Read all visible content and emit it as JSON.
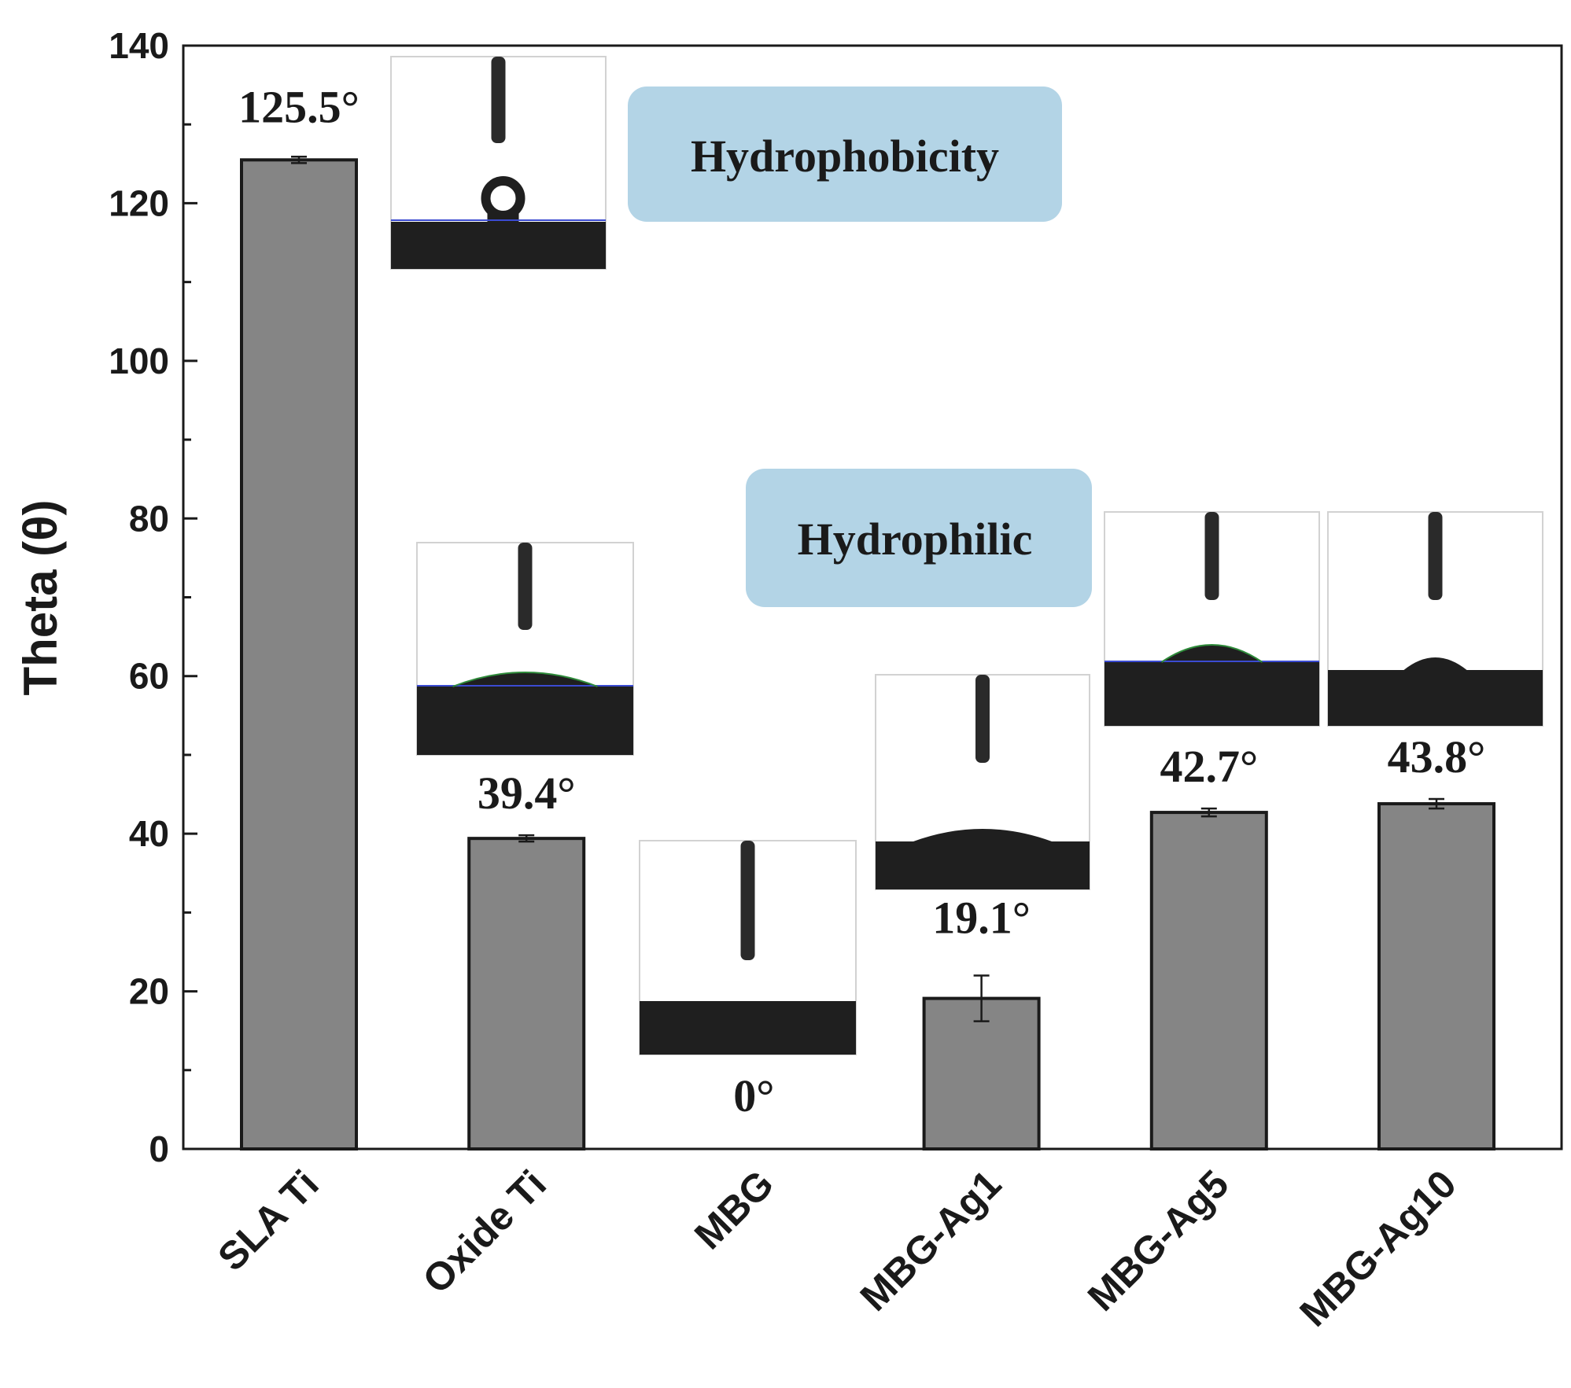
{
  "chart_data": {
    "type": "bar",
    "title": "",
    "xlabel": "",
    "ylabel": "Theta (θ)",
    "ylim": [
      0,
      140
    ],
    "yticks": [
      0,
      20,
      40,
      60,
      80,
      100,
      120,
      140
    ],
    "categories": [
      "SLA Ti",
      "Oxide Ti",
      "MBG",
      "MBG-Ag1",
      "MBG-Ag5",
      "MBG-Ag10"
    ],
    "values": [
      125.5,
      39.4,
      0,
      19.1,
      42.7,
      43.8
    ],
    "errors": [
      0.4,
      0.4,
      0,
      2.9,
      0.5,
      0.6
    ],
    "value_labels": [
      "125.5°",
      "39.4°",
      "0°",
      "19.1°",
      "42.7°",
      "43.8°"
    ],
    "bar_color": "#858585",
    "annotations": [
      {
        "text": "Hydrophobicity",
        "color": "#b3d4e6"
      },
      {
        "text": "Hydrophilic",
        "color": "#b3d4e6"
      }
    ],
    "inset_images": [
      "droplet-photo-sla-ti",
      "droplet-photo-oxide-ti",
      "droplet-photo-mbg",
      "droplet-photo-mbg-ag1",
      "droplet-photo-mbg-ag5",
      "droplet-photo-mbg-ag10"
    ]
  }
}
